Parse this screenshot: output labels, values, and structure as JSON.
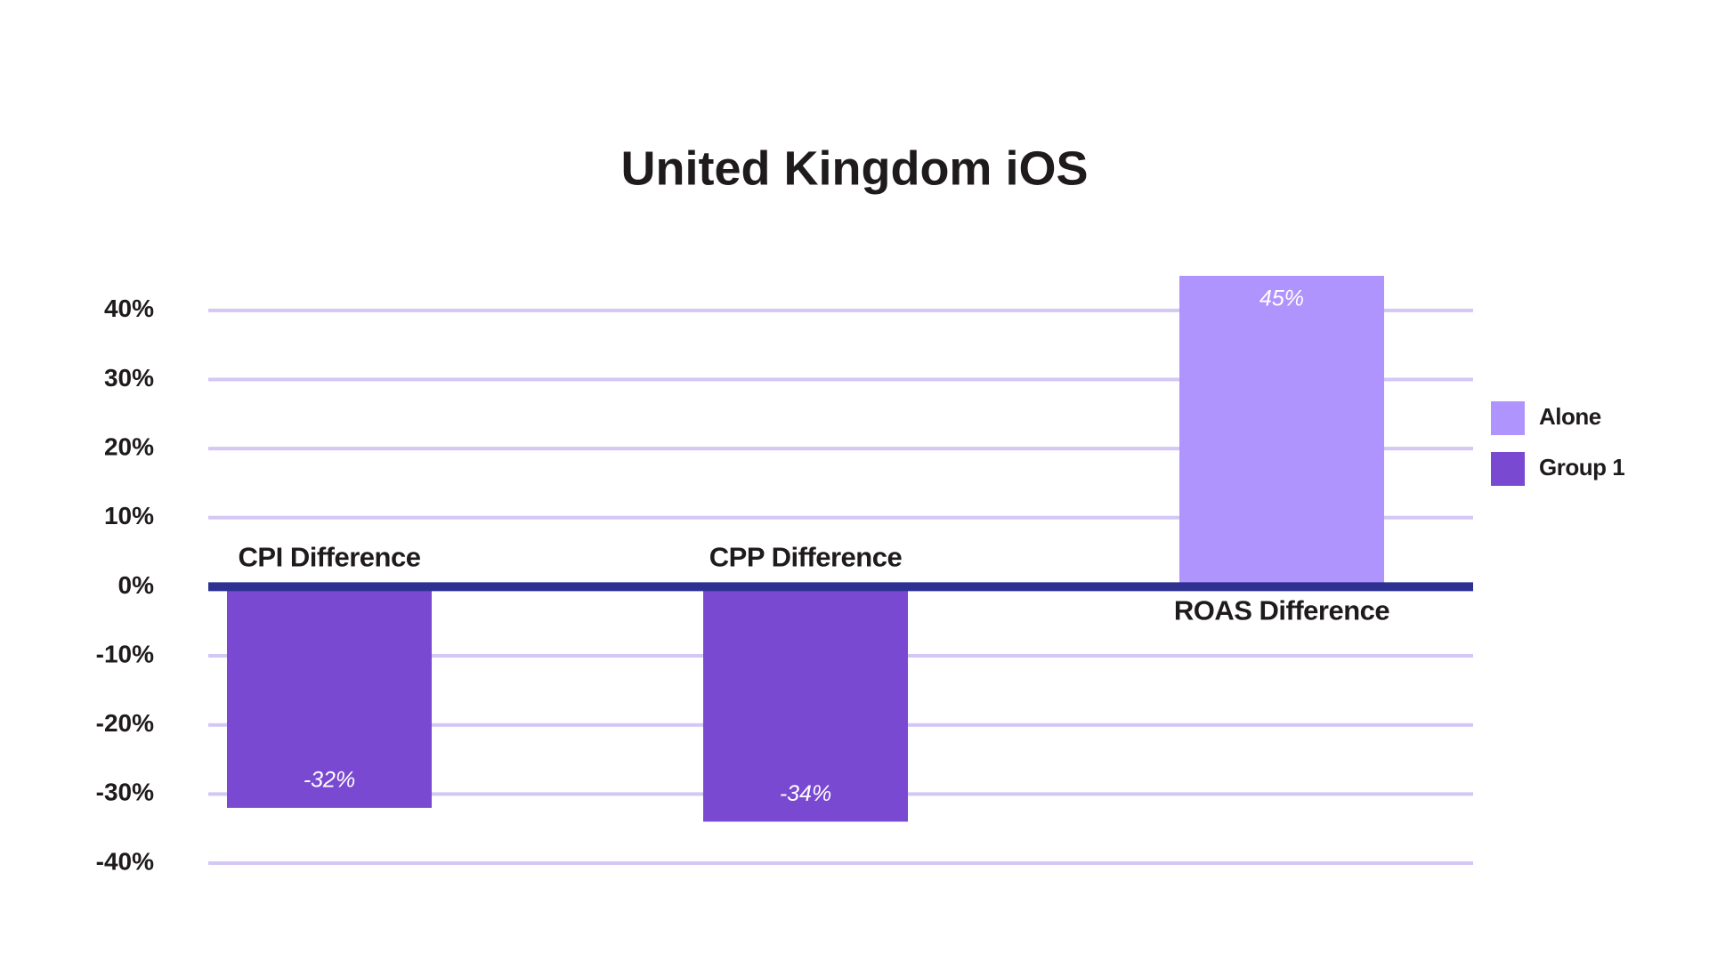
{
  "chart_data": {
    "type": "bar",
    "title": "United Kingdom iOS",
    "categories": [
      "CPI Difference",
      "CPP Difference",
      "ROAS Difference"
    ],
    "series": [
      {
        "name": "Alone",
        "color": "#b094fd",
        "values": [
          null,
          null,
          45
        ],
        "value_labels": [
          null,
          null,
          "45%"
        ]
      },
      {
        "name": "Group 1",
        "color": "#7a49d1",
        "values": [
          -32,
          -34,
          null
        ],
        "value_labels": [
          "-32%",
          "-34%",
          null
        ]
      }
    ],
    "ylim": [
      -40,
      45
    ],
    "yticks": [
      {
        "value": -40,
        "label": "-40%"
      },
      {
        "value": -30,
        "label": "-30%"
      },
      {
        "value": -20,
        "label": "-20%"
      },
      {
        "value": -10,
        "label": "-10%"
      },
      {
        "value": 0,
        "label": "0%"
      },
      {
        "value": 10,
        "label": "10%"
      },
      {
        "value": 20,
        "label": "20%"
      },
      {
        "value": 30,
        "label": "30%"
      },
      {
        "value": 40,
        "label": "40%"
      }
    ],
    "grid": true,
    "legend": "right"
  }
}
